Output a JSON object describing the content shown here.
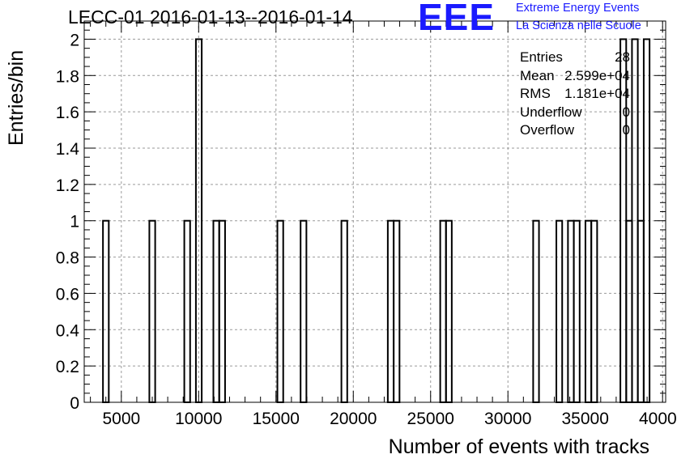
{
  "title": "LECC-01 2016-01-13--2016-01-14",
  "logo": {
    "mark": "EEE",
    "line1": "Extreme Energy Events",
    "line2": "La Scienza nelle Scuole"
  },
  "stats": [
    {
      "key": "Entries",
      "value": "28"
    },
    {
      "key": "Mean",
      "value": "2.599e+04"
    },
    {
      "key": "RMS",
      "value": "1.181e+04"
    },
    {
      "key": "Underflow",
      "value": "0"
    },
    {
      "key": "Overflow",
      "value": "0"
    }
  ],
  "chart_data": {
    "type": "bar",
    "title": "LECC-01 2016-01-13--2016-01-14",
    "xlabel": "Number of events with tracks",
    "ylabel": "Entries/bin",
    "xlim": [
      2600,
      40200
    ],
    "ylim": [
      0,
      2.1
    ],
    "grid": true,
    "bin_width": 376,
    "bins": [
      {
        "x": 4000,
        "y": 1
      },
      {
        "x": 7000,
        "y": 1
      },
      {
        "x": 9260,
        "y": 1
      },
      {
        "x": 10010,
        "y": 2
      },
      {
        "x": 11140,
        "y": 1
      },
      {
        "x": 11520,
        "y": 1
      },
      {
        "x": 15280,
        "y": 1
      },
      {
        "x": 16780,
        "y": 1
      },
      {
        "x": 19420,
        "y": 1
      },
      {
        "x": 22420,
        "y": 1
      },
      {
        "x": 22800,
        "y": 1
      },
      {
        "x": 25810,
        "y": 1
      },
      {
        "x": 26180,
        "y": 1
      },
      {
        "x": 31820,
        "y": 1
      },
      {
        "x": 33320,
        "y": 1
      },
      {
        "x": 34070,
        "y": 1
      },
      {
        "x": 34450,
        "y": 1
      },
      {
        "x": 35200,
        "y": 1
      },
      {
        "x": 35580,
        "y": 1
      },
      {
        "x": 37460,
        "y": 2
      },
      {
        "x": 37840,
        "y": 1
      },
      {
        "x": 38210,
        "y": 2
      },
      {
        "x": 38590,
        "y": 1
      },
      {
        "x": 38970,
        "y": 2
      }
    ],
    "x_ticks": [
      5000,
      10000,
      15000,
      20000,
      25000,
      30000,
      35000,
      40000
    ],
    "y_ticks": [
      0,
      0.2,
      0.4,
      0.6,
      0.8,
      1,
      1.2,
      1.4,
      1.6,
      1.8,
      2
    ],
    "y_tick_labels": [
      "0",
      "0.2",
      "0.4",
      "0.6",
      "0.8",
      "1",
      "1.2",
      "1.4",
      "1.6",
      "1.8",
      "2"
    ],
    "x_tick_labels": [
      "5000",
      "10000",
      "15000",
      "20000",
      "25000",
      "30000",
      "35000",
      "40000"
    ]
  }
}
